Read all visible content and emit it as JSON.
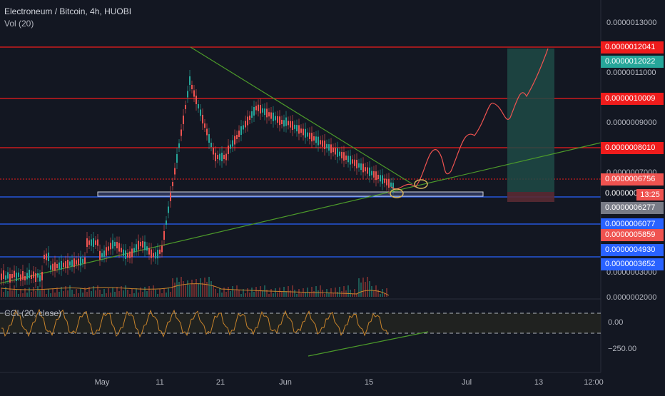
{
  "header": {
    "title": "Electroneum / Bitcoin, 4h, HUOBI",
    "volume_label": "Vol (20)"
  },
  "price_axis": {
    "ticks": [
      "0.0000013000",
      "0.0000011000",
      "0.0000009000",
      "0.0000007000",
      "0.0000003000",
      "0.0000002000"
    ],
    "levels": [
      {
        "label": "0.0000012041",
        "color": "#ef1c1c"
      },
      {
        "label": "0.0000012022",
        "color": "#26a69a"
      },
      {
        "label": "0.0000010009",
        "color": "#ef1c1c"
      },
      {
        "label": "0.0000008010",
        "color": "#ef1c1c"
      },
      {
        "label": "0.0000006756",
        "color": "#ef5350"
      },
      {
        "label": "0.0000006",
        "color": "#131722"
      },
      {
        "label": "0.0000006277",
        "color": "#787b86"
      },
      {
        "label": "0.0000006077",
        "color": "#2962ff"
      },
      {
        "label": "0.0000005859",
        "color": "#ef5350"
      },
      {
        "label": "0.0000004930",
        "color": "#2962ff"
      },
      {
        "label": "0.0000003652",
        "color": "#2962ff"
      }
    ],
    "countdown": "13:25"
  },
  "cci": {
    "label": "CCI (20, close)",
    "ticks": [
      "0.00",
      "−250.00"
    ]
  },
  "time_axis": {
    "labels": [
      "May",
      "11",
      "21",
      "Jun",
      "15",
      "Jul",
      "13",
      "12:00"
    ]
  },
  "colors": {
    "background": "#131722",
    "up": "#26a69a",
    "down": "#ef5350",
    "resistance": "#ef1c1c",
    "support": "#2962ff",
    "trendline": "#4c9a2a",
    "projection": "#ef5350",
    "cci": "#c8842b"
  }
}
